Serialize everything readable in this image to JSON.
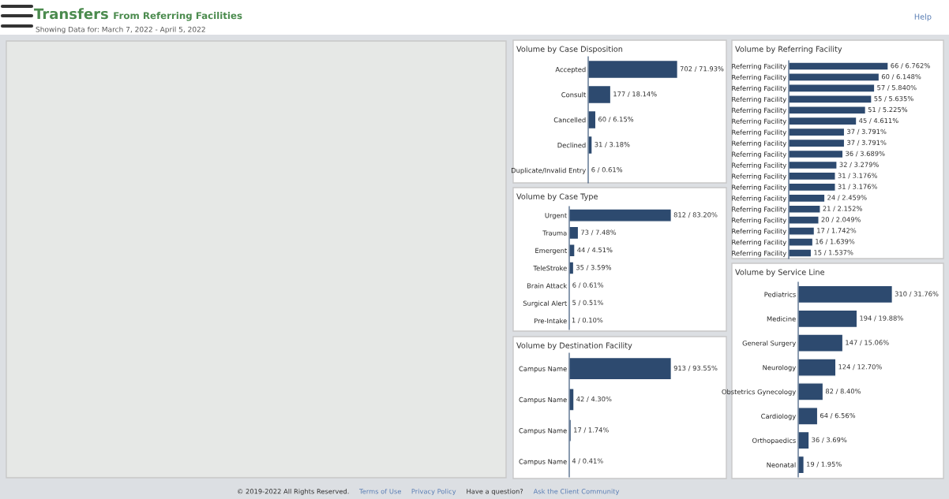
{
  "chart_data": [
    {
      "type": "other",
      "title": "Transfers",
      "subtitle": "From Referring Facilities",
      "annotations": [
        "Showing Data for: March 7, 2022 - April 5, 2022",
        "Help",
        "© 2019-2022 All Rights Reserved.",
        "Terms of Use",
        "Privacy Policy",
        "Have a question?",
        "Ask the Client Community"
      ]
    },
    {
      "type": "bar",
      "orientation": "horizontal",
      "title": "Volume by Case Disposition",
      "tick_labels": "y",
      "color": "#2d4a6f",
      "categories": [
        "Accepted",
        "Consult",
        "Cancelled",
        "Declined",
        "Duplicate/Invalid Entry"
      ],
      "values": [
        702,
        177,
        60,
        31,
        6
      ],
      "value_labels": [
        "702 / 71.93%",
        "177 / 18.14%",
        "60 / 6.15%",
        "31 / 3.18%",
        "6 / 0.61%"
      ]
    },
    {
      "type": "bar",
      "orientation": "horizontal",
      "title": "Volume by Case Type",
      "tick_labels": "y",
      "color": "#2d4a6f",
      "categories": [
        "Urgent",
        "Trauma",
        "Emergent",
        "TeleStroke",
        "Brain Attack",
        "Surgical Alert",
        "Pre-Intake"
      ],
      "values": [
        812,
        73,
        44,
        35,
        6,
        5,
        1
      ],
      "value_labels": [
        "812 / 83.20%",
        "73 / 7.48%",
        "44 / 4.51%",
        "35 / 3.59%",
        "6 / 0.61%",
        "5 / 0.51%",
        "1 / 0.10%"
      ]
    },
    {
      "type": "bar",
      "orientation": "horizontal",
      "title": "Volume by Destination Facility",
      "tick_labels": "y",
      "color": "#2d4a6f",
      "categories": [
        "Campus Name",
        "Campus Name",
        "Campus Name",
        "Campus Name"
      ],
      "values": [
        913,
        42,
        17,
        4
      ],
      "value_labels": [
        "913 / 93.55%",
        "42 / 4.30%",
        "17 / 1.74%",
        "4 / 0.41%"
      ]
    },
    {
      "type": "bar",
      "orientation": "horizontal",
      "title": "Volume by Referring Facility",
      "tick_labels": "y",
      "color": "#2d4a6f",
      "categories": [
        "Referring Facility",
        "Referring Facility",
        "Referring Facility",
        "Referring Facility",
        "Referring Facility",
        "Referring Facility",
        "Referring Facility",
        "Referring Facility",
        "Referring Facility",
        "Referring Facility",
        "Referring Facility",
        "Referring Facility",
        "Referring Facility",
        "Referring Facility",
        "Referring Facility",
        "Referring Facility",
        "Referring Facility",
        "Referring Facility"
      ],
      "values": [
        66,
        60,
        57,
        55,
        51,
        45,
        37,
        37,
        36,
        32,
        31,
        31,
        24,
        21,
        20,
        17,
        16,
        15
      ],
      "value_labels": [
        "66 / 6.762%",
        "60 / 6.148%",
        "57 / 5.840%",
        "55 / 5.635%",
        "51 / 5.225%",
        "45 / 4.611%",
        "37 / 3.791%",
        "37 / 3.791%",
        "36 / 3.689%",
        "32 / 3.279%",
        "31 / 3.176%",
        "31 / 3.176%",
        "24 / 2.459%",
        "21 / 2.152%",
        "20 / 2.049%",
        "17 / 1.742%",
        "16 / 1.639%",
        "15 / 1.537%"
      ]
    },
    {
      "type": "bar",
      "orientation": "horizontal",
      "title": "Volume by Service Line",
      "tick_labels": "y",
      "color": "#2d4a6f",
      "categories": [
        "Pediatrics",
        "Medicine",
        "General Surgery",
        "Neurology",
        "Obstetrics Gynecology",
        "Cardiology",
        "Orthopaedics",
        "Neonatal"
      ],
      "values": [
        310,
        194,
        147,
        124,
        82,
        64,
        36,
        19
      ],
      "value_labels": [
        "310 / 31.76%",
        "194 / 19.88%",
        "147 / 15.06%",
        "124 / 12.70%",
        "82 / 8.40%",
        "64 / 6.56%",
        "36 / 3.69%",
        "19 / 1.95%"
      ]
    }
  ]
}
